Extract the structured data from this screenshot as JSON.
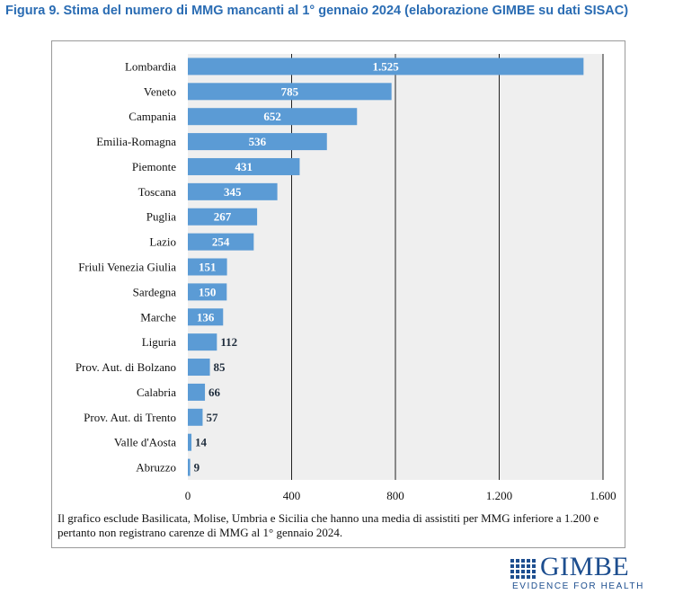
{
  "figure": {
    "title": "Figura 9. Stima del numero di MMG mancanti al 1° gennaio 2024 (elaborazione GIMBE su dati SISAC)",
    "note": "Il grafico esclude Basilicata, Molise, Umbria e Sicilia che hanno una media di assistiti per MMG inferiore a 1.200 e pertanto non registrano carenze di MMG al 1° gennaio 2024."
  },
  "logo": {
    "word": "GIMBE",
    "tagline": "EVIDENCE FOR HEALTH"
  },
  "colors": {
    "bar": "#5b9bd5",
    "plot_background": "#efefef",
    "gridline": "#222222",
    "title": "#2a6cb3",
    "brand": "#1d4e8f"
  },
  "chart_data": {
    "type": "bar",
    "orientation": "horizontal",
    "categories": [
      "Lombardia",
      "Veneto",
      "Campania",
      "Emilia-Romagna",
      "Piemonte",
      "Toscana",
      "Puglia",
      "Lazio",
      "Friuli Venezia Giulia",
      "Sardegna",
      "Marche",
      "Liguria",
      "Prov. Aut. di Bolzano",
      "Calabria",
      "Prov. Aut. di Trento",
      "Valle d'Aosta",
      "Abruzzo"
    ],
    "values": [
      1525,
      785,
      652,
      536,
      431,
      345,
      267,
      254,
      151,
      150,
      136,
      112,
      85,
      66,
      57,
      14,
      9
    ],
    "value_labels": [
      "1.525",
      "785",
      "652",
      "536",
      "431",
      "345",
      "267",
      "254",
      "151",
      "150",
      "136",
      "112",
      "85",
      "66",
      "57",
      "14",
      "9"
    ],
    "xlim": [
      0,
      1600
    ],
    "xticks": [
      0,
      400,
      800,
      1200,
      1600
    ],
    "xtick_labels": [
      "0",
      "400",
      "800",
      "1.200",
      "1.600"
    ],
    "grid": true,
    "legend": false
  }
}
